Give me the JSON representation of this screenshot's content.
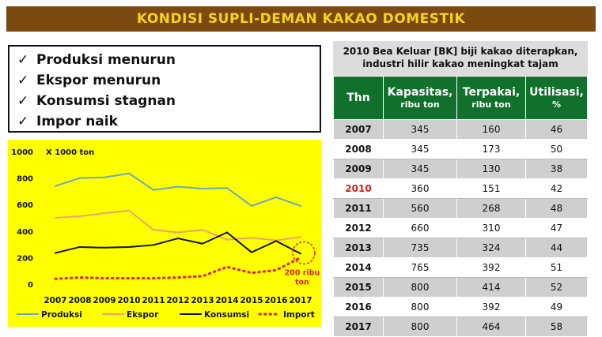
{
  "banner": {
    "title": "KONDISI SUPLI-DEMAN KAKAO DOMESTIK",
    "bg_color": "#7a4a10",
    "text_color": "#f7d21e"
  },
  "checklist": {
    "mark": "✓",
    "items": [
      "Produksi menurun",
      "Ekspor menurun",
      "Konsumsi stagnan",
      "Impor naik"
    ]
  },
  "chart_data": {
    "type": "line",
    "background": "#ffff00",
    "unit_label": "X 1000 ton",
    "categories": [
      "2007",
      "2008",
      "2009",
      "2010",
      "2011",
      "2012",
      "2013",
      "2014",
      "2015",
      "2016",
      "2017"
    ],
    "ylim": [
      0,
      1000
    ],
    "yticks": [
      0,
      200,
      400,
      600,
      800,
      1000
    ],
    "grid": false,
    "legend_position": "bottom",
    "series": [
      {
        "name": "Produksi",
        "color": "#6aa7c4",
        "dash": false,
        "values": [
          740,
          800,
          805,
          835,
          710,
          735,
          720,
          725,
          590,
          655,
          590
        ]
      },
      {
        "name": "Ekspor",
        "color": "#f0a070",
        "dash": false,
        "values": [
          500,
          512,
          535,
          555,
          410,
          390,
          410,
          335,
          350,
          330,
          355
        ]
      },
      {
        "name": "Konsumsi",
        "color": "#111111",
        "dash": false,
        "values": [
          235,
          280,
          275,
          280,
          295,
          345,
          305,
          390,
          240,
          325,
          230
        ]
      },
      {
        "name": "Import",
        "color": "#e02020",
        "dash": true,
        "values": [
          40,
          50,
          45,
          45,
          45,
          50,
          60,
          130,
          85,
          105,
          200
        ]
      }
    ],
    "annotation": {
      "text_line1": "200 ribu",
      "text_line2": "ton",
      "color": "#e02020"
    }
  },
  "table": {
    "caption_line1": "2010 Bea Keluar [BK] biji kakao diterapkan,",
    "caption_line2": "industri hilir kakao meningkat tajam",
    "headers": [
      {
        "main": "Thn",
        "sub": ""
      },
      {
        "main": "Kapasitas,",
        "sub": "ribu ton"
      },
      {
        "main": "Terpakai,",
        "sub": "ribu ton"
      },
      {
        "main": "Utilisasi,",
        "sub": "%"
      }
    ],
    "header_color": "#11702c",
    "highlight_year": "2010",
    "highlight_color": "#d42020",
    "rows": [
      [
        "2007",
        "345",
        "160",
        "46"
      ],
      [
        "2008",
        "345",
        "173",
        "50"
      ],
      [
        "2009",
        "345",
        "130",
        "38"
      ],
      [
        "2010",
        "360",
        "151",
        "42"
      ],
      [
        "2011",
        "560",
        "268",
        "48"
      ],
      [
        "2012",
        "660",
        "310",
        "47"
      ],
      [
        "2013",
        "735",
        "324",
        "44"
      ],
      [
        "2014",
        "765",
        "392",
        "51"
      ],
      [
        "2015",
        "800",
        "414",
        "52"
      ],
      [
        "2016",
        "800",
        "392",
        "49"
      ],
      [
        "2017",
        "800",
        "464",
        "58"
      ]
    ]
  }
}
